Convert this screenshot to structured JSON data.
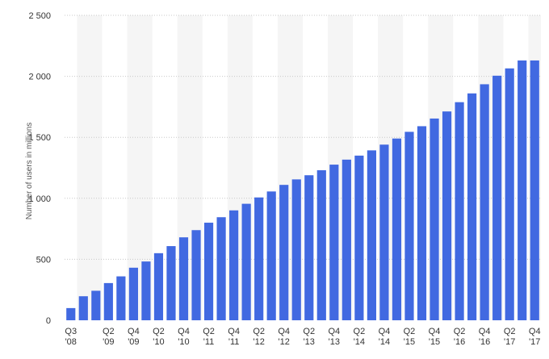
{
  "chart_data": {
    "type": "bar",
    "title": "",
    "xlabel": "",
    "ylabel": "Number of users in millions",
    "ylim": [
      0,
      2500
    ],
    "yticks": [
      0,
      500,
      1000,
      1500,
      2000,
      2500
    ],
    "ytick_labels": [
      "0",
      "500",
      "1 000",
      "1 500",
      "2 000",
      "2 500"
    ],
    "grid": true,
    "legend": "none",
    "bar_color": "#4169e1",
    "band_color": "#f5f5f5",
    "categories": [
      "Q3 '08",
      "Q4 '08",
      "Q1 '09",
      "Q2 '09",
      "Q3 '09",
      "Q4 '09",
      "Q1 '10",
      "Q2 '10",
      "Q3 '10",
      "Q4 '10",
      "Q1 '11",
      "Q2 '11",
      "Q3 '11",
      "Q4 '11",
      "Q1 '12",
      "Q2 '12",
      "Q3 '12",
      "Q4 '12",
      "Q1 '13",
      "Q2 '13",
      "Q3 '13",
      "Q4 '13",
      "Q1 '14",
      "Q2 '14",
      "Q3 '14",
      "Q4 '14",
      "Q1 '15",
      "Q2 '15",
      "Q3 '15",
      "Q4 '15",
      "Q1 '16",
      "Q2 '16",
      "Q3 '16",
      "Q4 '16",
      "Q1 '17",
      "Q2 '17",
      "Q3 '17",
      "Q4 '17"
    ],
    "values": [
      100,
      197,
      242,
      305,
      360,
      431,
      482,
      550,
      608,
      680,
      739,
      800,
      845,
      901,
      955,
      1007,
      1056,
      1110,
      1155,
      1189,
      1230,
      1276,
      1317,
      1350,
      1393,
      1440,
      1490,
      1545,
      1591,
      1654,
      1712,
      1788,
      1860,
      1935,
      2005,
      2065,
      2130,
      2130
    ],
    "x_tick_labels": [
      {
        "index": 0,
        "q": "Q3",
        "y": "'08"
      },
      {
        "index": 3,
        "q": "Q2",
        "y": "'09"
      },
      {
        "index": 5,
        "q": "Q4",
        "y": "'09"
      },
      {
        "index": 7,
        "q": "Q2",
        "y": "'10"
      },
      {
        "index": 9,
        "q": "Q4",
        "y": "'10"
      },
      {
        "index": 11,
        "q": "Q2",
        "y": "'11"
      },
      {
        "index": 13,
        "q": "Q4",
        "y": "'11"
      },
      {
        "index": 15,
        "q": "Q2",
        "y": "'12"
      },
      {
        "index": 17,
        "q": "Q4",
        "y": "'12"
      },
      {
        "index": 19,
        "q": "Q2",
        "y": "'13"
      },
      {
        "index": 21,
        "q": "Q4",
        "y": "'13"
      },
      {
        "index": 23,
        "q": "Q2",
        "y": "'14"
      },
      {
        "index": 25,
        "q": "Q4",
        "y": "'14"
      },
      {
        "index": 27,
        "q": "Q2",
        "y": "'15"
      },
      {
        "index": 29,
        "q": "Q4",
        "y": "'15"
      },
      {
        "index": 31,
        "q": "Q2",
        "y": "'16"
      },
      {
        "index": 33,
        "q": "Q4",
        "y": "'16"
      },
      {
        "index": 35,
        "q": "Q2",
        "y": "'17"
      },
      {
        "index": 37,
        "q": "Q4",
        "y": "'17"
      }
    ]
  }
}
